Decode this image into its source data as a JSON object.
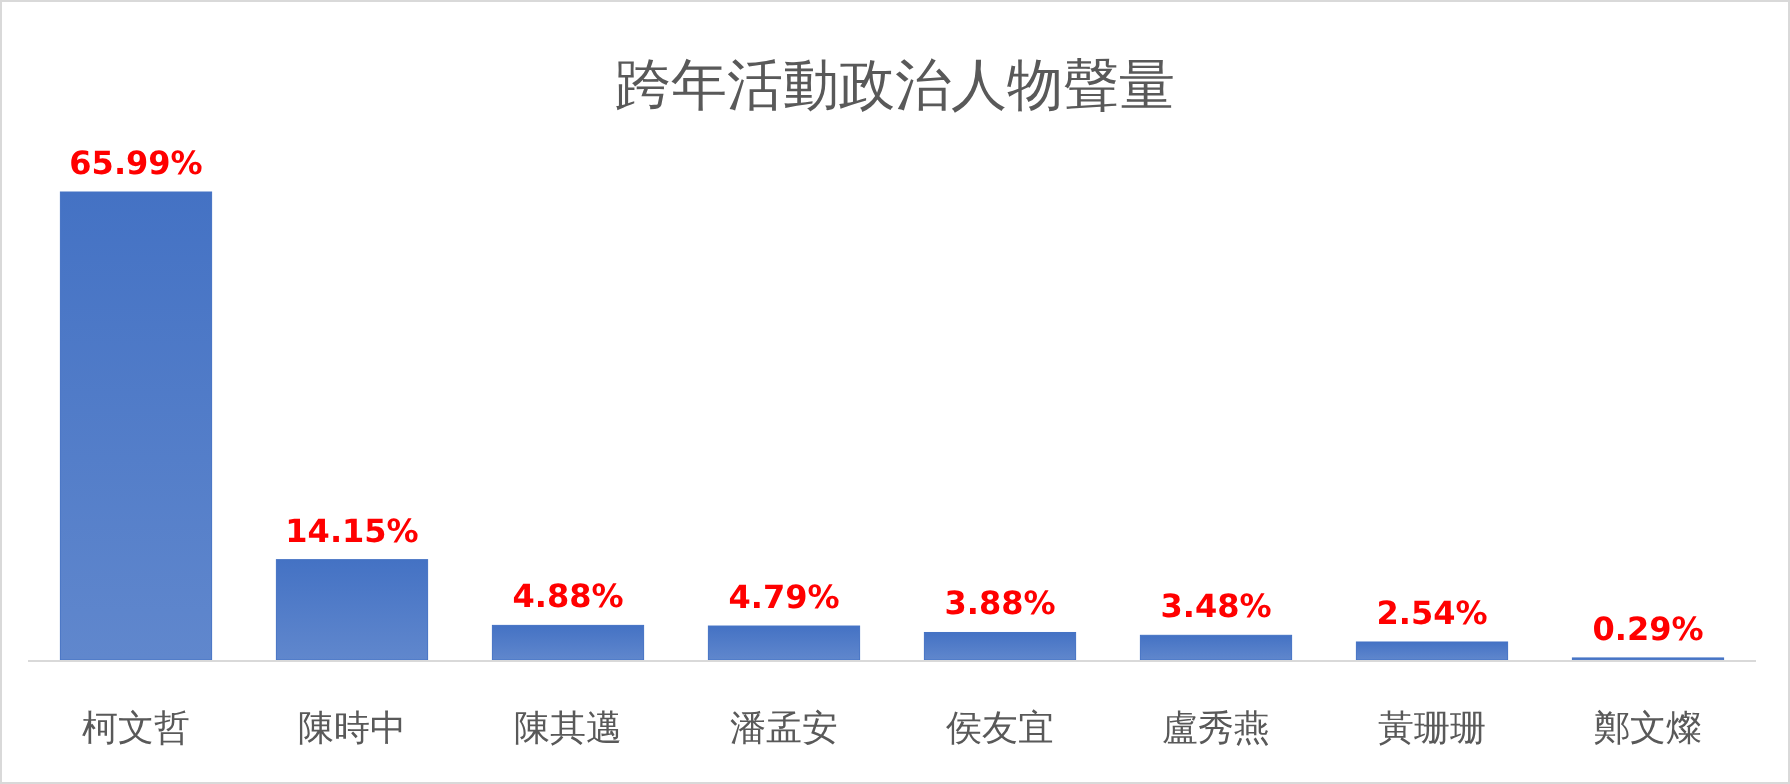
{
  "chart_data": {
    "type": "bar",
    "title": "跨年活動政治人物聲量",
    "categories": [
      "柯文哲",
      "陳時中",
      "陳其邁",
      "潘孟安",
      "侯友宜",
      "盧秀燕",
      "黃珊珊",
      "鄭文燦"
    ],
    "values": [
      65.99,
      14.15,
      4.88,
      4.79,
      3.88,
      3.48,
      2.54,
      0.29
    ],
    "value_labels": [
      "65.99%",
      "14.15%",
      "4.88%",
      "4.79%",
      "3.88%",
      "3.48%",
      "2.54%",
      "0.29%"
    ],
    "color": "#4472c4"
  }
}
